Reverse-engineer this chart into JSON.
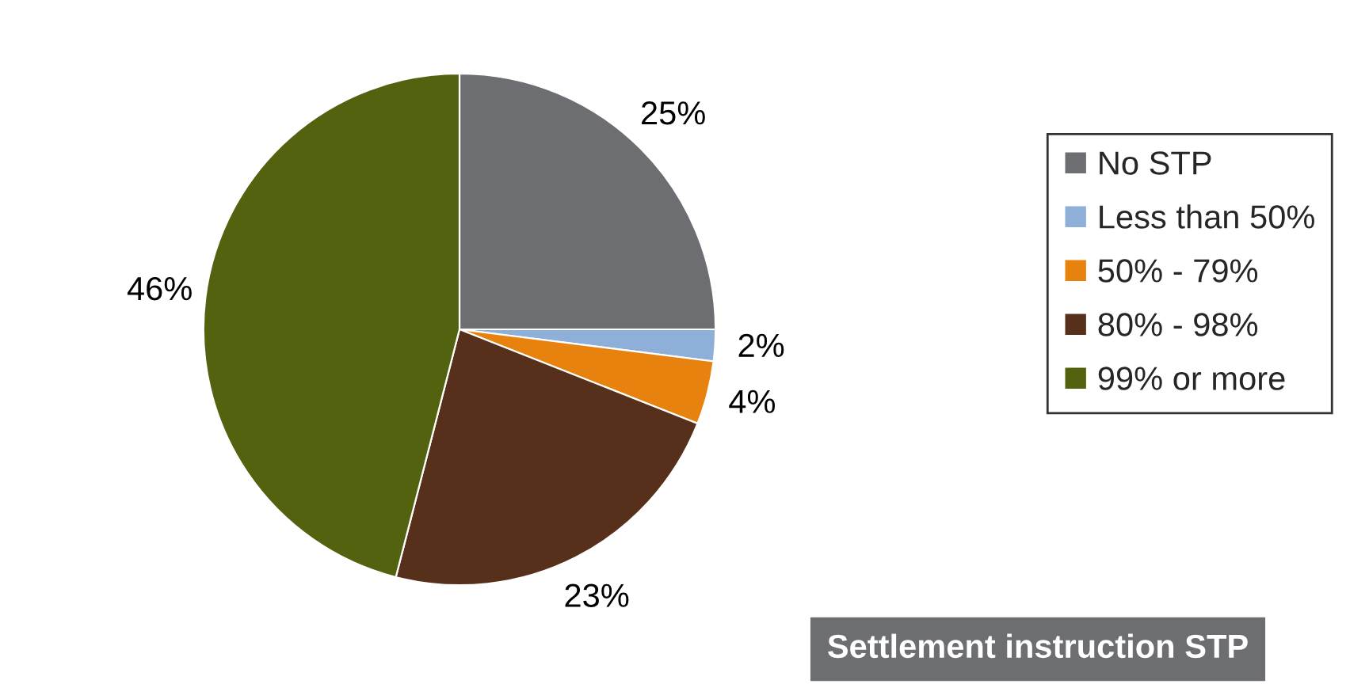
{
  "chart_data": {
    "type": "pie",
    "categories": [
      "No STP",
      "Less than 50%",
      "50% - 79%",
      "80% - 98%",
      "99% or more"
    ],
    "values": [
      25,
      2,
      4,
      23,
      46
    ],
    "colors": [
      "#6d6e71",
      "#8eafd8",
      "#e8820f",
      "#56301a",
      "#53620f"
    ],
    "value_labels": [
      "25%",
      "2%",
      "4%",
      "23%",
      "46%"
    ],
    "legend": "right",
    "annotations": [
      "Settlement instruction STP"
    ]
  }
}
